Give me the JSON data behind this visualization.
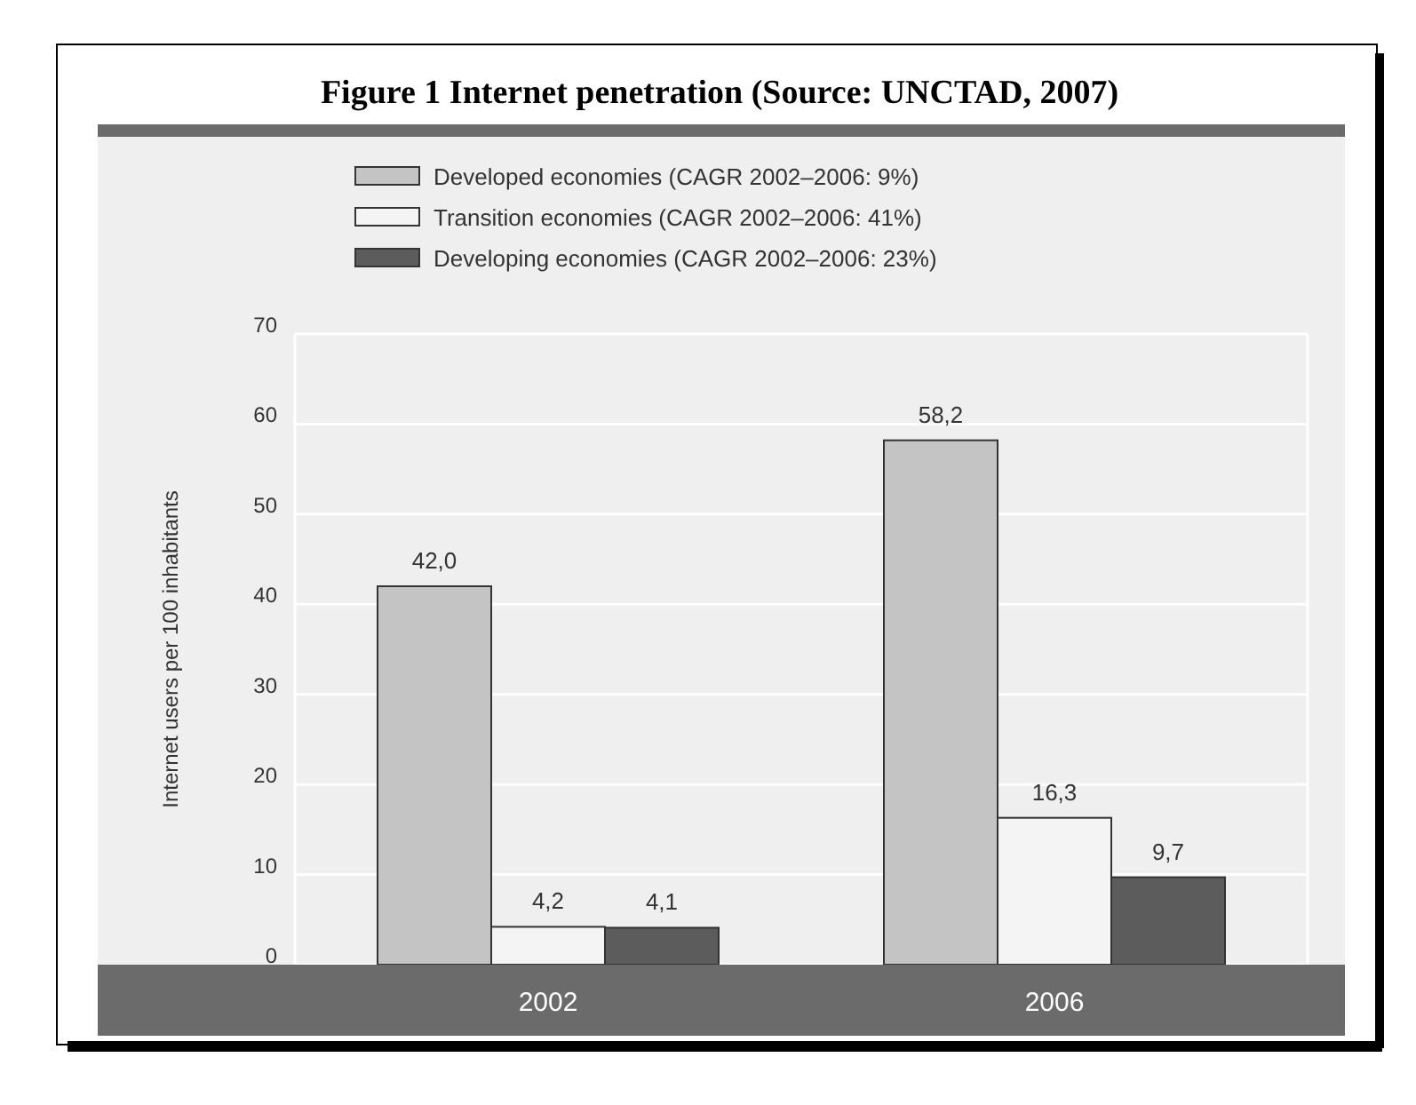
{
  "chart_data": {
    "type": "bar",
    "title": "Figure 1 Internet penetration (Source: UNCTAD, 2007)",
    "ylabel": "Internet users per 100 inhabitants",
    "categories": [
      "2002",
      "2006"
    ],
    "series": [
      {
        "name": "Developed economies (CAGR 2002–2006: 9%)",
        "color": "#c4c4c4",
        "values": [
          42.0,
          58.2
        ],
        "value_labels": [
          "42,0",
          "58,2"
        ]
      },
      {
        "name": "Transition economies (CAGR 2002–2006: 41%)",
        "color": "#f4f4f4",
        "values": [
          4.2,
          16.3
        ],
        "value_labels": [
          "4,2",
          "16,3"
        ]
      },
      {
        "name": "Developing economies (CAGR 2002–2006: 23%)",
        "color": "#5c5c5c",
        "values": [
          4.1,
          9.7
        ],
        "value_labels": [
          "4,1",
          "9,7"
        ]
      }
    ],
    "ylim": [
      0,
      70
    ],
    "yticks": [
      0,
      10,
      20,
      30,
      40,
      50,
      60,
      70
    ],
    "grid": "y",
    "legend": "top"
  }
}
